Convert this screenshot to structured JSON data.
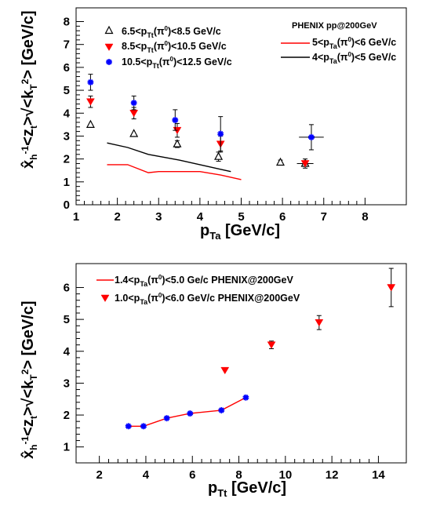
{
  "chart_data": [
    {
      "type": "scatter",
      "xlim": [
        1,
        9
      ],
      "ylim": [
        0,
        8.6
      ],
      "xticks": [
        1,
        2,
        3,
        4,
        5,
        6,
        7,
        8
      ],
      "yticks": [
        0,
        1,
        2,
        3,
        4,
        5,
        6,
        7,
        8
      ],
      "xlabel": "p_Ta [GeV/c]",
      "ylabel": "x̂_h⁻¹<z_t>√<k_T²> [GeV/c]",
      "header": "PHENIX pp@200GeV",
      "legend_placement": "top",
      "series": [
        {
          "name": "6.5<p_Tt(π⁰)<8.5 GeV/c",
          "kind": "points",
          "marker": "open-triangle",
          "color": "#000000",
          "points": [
            {
              "x": 1.35,
              "y": 3.5,
              "yerr": 0,
              "xerr": 0
            },
            {
              "x": 2.4,
              "y": 3.1,
              "yerr": 0,
              "xerr": 0
            },
            {
              "x": 3.45,
              "y": 2.65,
              "yerr": 0.15,
              "xerr": 0
            },
            {
              "x": 4.45,
              "y": 2.1,
              "yerr": 0.2,
              "xerr": 0
            },
            {
              "x": 5.95,
              "y": 1.85,
              "yerr": 0.1,
              "xerr": 0
            },
            {
              "x": 6.55,
              "y": 1.8,
              "yerr": 0.1,
              "xerr": 0
            }
          ]
        },
        {
          "name": "8.5<p_Tt(π⁰)<10.5 GeV/c",
          "kind": "points",
          "marker": "filled-triangle-down",
          "color": "#ff0000",
          "points": [
            {
              "x": 1.35,
              "y": 4.5,
              "yerr": 0.25,
              "xerr": 0
            },
            {
              "x": 2.4,
              "y": 4.0,
              "yerr": 0.25,
              "xerr": 0
            },
            {
              "x": 3.45,
              "y": 3.25,
              "yerr": 0.3,
              "xerr": 0
            },
            {
              "x": 4.5,
              "y": 2.65,
              "yerr": 0.35,
              "xerr": 0
            },
            {
              "x": 6.55,
              "y": 1.8,
              "yerr": 0.2,
              "xerr": 0.2
            }
          ]
        },
        {
          "name": "10.5<p_Tt(π⁰)<12.5 GeV/c",
          "kind": "points",
          "marker": "star",
          "color": "#0000ff",
          "points": [
            {
              "x": 1.35,
              "y": 5.35,
              "yerr": 0.35,
              "xerr": 0
            },
            {
              "x": 2.4,
              "y": 4.45,
              "yerr": 0.3,
              "xerr": 0
            },
            {
              "x": 3.4,
              "y": 3.7,
              "yerr": 0.45,
              "xerr": 0
            },
            {
              "x": 4.5,
              "y": 3.1,
              "yerr": 0.75,
              "xerr": 0
            },
            {
              "x": 6.7,
              "y": 2.95,
              "yerr": 0.55,
              "xerr": 0.3
            }
          ]
        },
        {
          "name": "5<p_Ta(π⁰)<6 GeV/c",
          "kind": "line",
          "color": "#ff0000",
          "points": [
            {
              "x": 1.75,
              "y": 1.75
            },
            {
              "x": 2.25,
              "y": 1.75
            },
            {
              "x": 2.75,
              "y": 1.4
            },
            {
              "x": 3.0,
              "y": 1.45
            },
            {
              "x": 3.5,
              "y": 1.45
            },
            {
              "x": 4.0,
              "y": 1.45
            },
            {
              "x": 4.5,
              "y": 1.3
            },
            {
              "x": 5.0,
              "y": 1.1
            }
          ]
        },
        {
          "name": "4<p_Ta(π⁰)<5 GeV/c",
          "kind": "line",
          "color": "#000000",
          "points": [
            {
              "x": 1.75,
              "y": 2.7
            },
            {
              "x": 2.25,
              "y": 2.5
            },
            {
              "x": 2.75,
              "y": 2.2
            },
            {
              "x": 3.5,
              "y": 1.95
            },
            {
              "x": 4.0,
              "y": 1.75
            },
            {
              "x": 4.5,
              "y": 1.55
            },
            {
              "x": 4.75,
              "y": 1.45
            }
          ]
        }
      ]
    },
    {
      "type": "scatter",
      "xlim": [
        1,
        15.2
      ],
      "ylim": [
        0.5,
        6.75
      ],
      "xticks": [
        2,
        4,
        6,
        8,
        10,
        12,
        14
      ],
      "yticks": [
        1,
        2,
        3,
        4,
        5,
        6
      ],
      "xlabel": "p_Tt [GeV/c]",
      "ylabel": "x̂_h⁻¹<z_t>√<k_T²> [GeV/c]",
      "legend_placement": "top-left",
      "series": [
        {
          "name": "1.4<p_Ta(π⁰)<5.0 Ge/c PHENIX@200GeV",
          "kind": "line-with-markers",
          "marker": "star",
          "color": "#ff0000",
          "marker_color": "#0000ff",
          "points": [
            {
              "x": 3.25,
              "y": 1.65
            },
            {
              "x": 3.9,
              "y": 1.65
            },
            {
              "x": 4.9,
              "y": 1.9
            },
            {
              "x": 5.9,
              "y": 2.05
            },
            {
              "x": 7.25,
              "y": 2.15
            },
            {
              "x": 8.3,
              "y": 2.55
            }
          ]
        },
        {
          "name": "1.0<p_Ta(π⁰)<6.0 GeV/c PHENIX@200GeV",
          "kind": "points",
          "marker": "filled-triangle-down",
          "color": "#ff0000",
          "points": [
            {
              "x": 7.4,
              "y": 3.4,
              "yerr": 0
            },
            {
              "x": 9.4,
              "y": 4.2,
              "yerr": 0.12
            },
            {
              "x": 11.45,
              "y": 4.9,
              "yerr": 0.22
            },
            {
              "x": 14.55,
              "y": 6.0,
              "yerr": 0.6
            }
          ]
        }
      ]
    }
  ]
}
